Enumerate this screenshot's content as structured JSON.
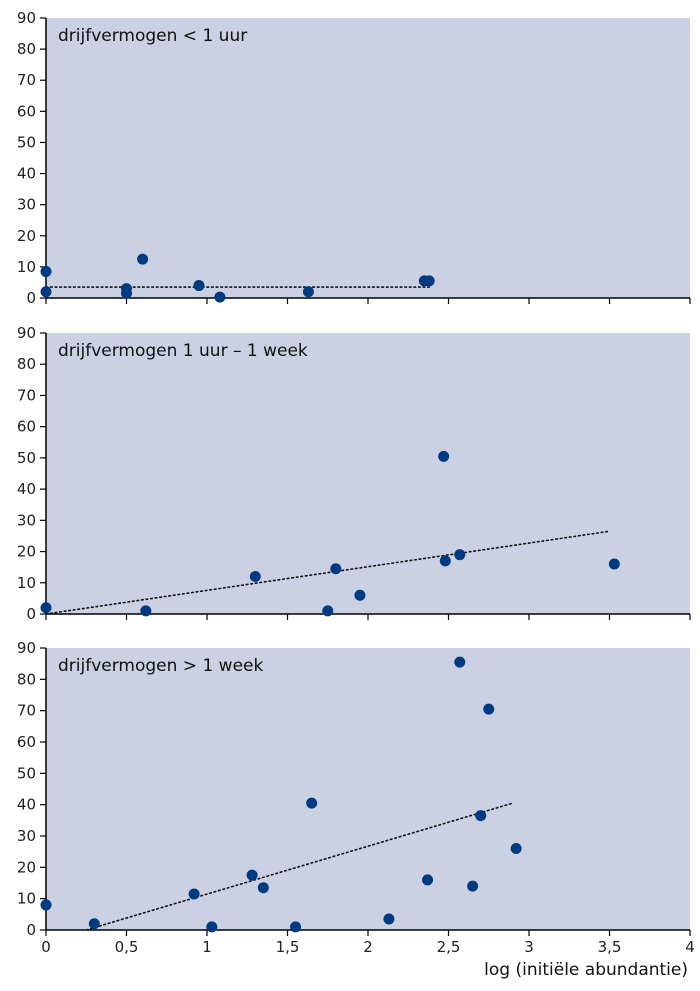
{
  "chart_data": [
    {
      "type": "scatter",
      "title": "drijfvermogen < 1 uur",
      "xlim": [
        0,
        4
      ],
      "ylim": [
        0,
        90
      ],
      "yticks": [
        0,
        10,
        20,
        30,
        40,
        50,
        60,
        70,
        80,
        90
      ],
      "xtick_labels": [],
      "points": [
        {
          "x": 0,
          "y": 8.5
        },
        {
          "x": 0,
          "y": 2
        },
        {
          "x": 0.5,
          "y": 3
        },
        {
          "x": 0.5,
          "y": 1.5
        },
        {
          "x": 0.6,
          "y": 12.5
        },
        {
          "x": 0.95,
          "y": 4
        },
        {
          "x": 1.08,
          "y": 0.3
        },
        {
          "x": 1.63,
          "y": 2
        },
        {
          "x": 2.35,
          "y": 5.5
        },
        {
          "x": 2.38,
          "y": 5.5
        }
      ],
      "trendline": {
        "style": "dotted",
        "x": [
          0,
          2.38
        ],
        "y": [
          3.5,
          3.5
        ]
      },
      "background": "#cbd0e3",
      "point_color": "#003a80",
      "grid": false
    },
    {
      "type": "scatter",
      "title": "drijfvermogen  1 uur – 1 week",
      "xlim": [
        0,
        4
      ],
      "ylim": [
        0,
        90
      ],
      "yticks": [
        0,
        10,
        20,
        30,
        40,
        50,
        60,
        70,
        80,
        90
      ],
      "xtick_labels": [],
      "points": [
        {
          "x": 0,
          "y": 2
        },
        {
          "x": 0.62,
          "y": 1
        },
        {
          "x": 1.3,
          "y": 12
        },
        {
          "x": 1.75,
          "y": 1
        },
        {
          "x": 1.8,
          "y": 14.5
        },
        {
          "x": 1.95,
          "y": 6
        },
        {
          "x": 2.47,
          "y": 50.5
        },
        {
          "x": 2.48,
          "y": 17
        },
        {
          "x": 2.57,
          "y": 19
        },
        {
          "x": 3.53,
          "y": 16
        }
      ],
      "trendline": {
        "style": "dotted",
        "x": [
          0,
          3.5
        ],
        "y": [
          0,
          26.5
        ]
      },
      "background": "#cbd0e3",
      "point_color": "#003a80",
      "grid": false
    },
    {
      "type": "scatter",
      "title": "drijfvermogen > 1 week",
      "xlim": [
        0,
        4
      ],
      "ylim": [
        0,
        90
      ],
      "yticks": [
        0,
        10,
        20,
        30,
        40,
        50,
        60,
        70,
        80,
        90
      ],
      "xticks": [
        0,
        0.5,
        1,
        1.5,
        2,
        2.5,
        3,
        3.5,
        4
      ],
      "xtick_labels": [
        "0",
        "0,5",
        "1",
        "1,5",
        "2",
        "2,5",
        "3",
        "3,5",
        "4"
      ],
      "xlabel": "log (initiële abundantie)",
      "points": [
        {
          "x": 0,
          "y": 8
        },
        {
          "x": 0.3,
          "y": 2
        },
        {
          "x": 0.92,
          "y": 11.5
        },
        {
          "x": 1.03,
          "y": 1
        },
        {
          "x": 1.28,
          "y": 17.5
        },
        {
          "x": 1.35,
          "y": 13.5
        },
        {
          "x": 1.55,
          "y": 1
        },
        {
          "x": 1.65,
          "y": 40.5
        },
        {
          "x": 2.13,
          "y": 3.5
        },
        {
          "x": 2.37,
          "y": 16
        },
        {
          "x": 2.57,
          "y": 85.5
        },
        {
          "x": 2.65,
          "y": 14
        },
        {
          "x": 2.7,
          "y": 36.5
        },
        {
          "x": 2.75,
          "y": 70.5
        },
        {
          "x": 2.92,
          "y": 26
        }
      ],
      "trendline": {
        "style": "dotted",
        "x": [
          0.25,
          2.9
        ],
        "y": [
          0,
          40.5
        ]
      },
      "background": "#cbd0e3",
      "point_color": "#003a80",
      "grid": false
    }
  ]
}
